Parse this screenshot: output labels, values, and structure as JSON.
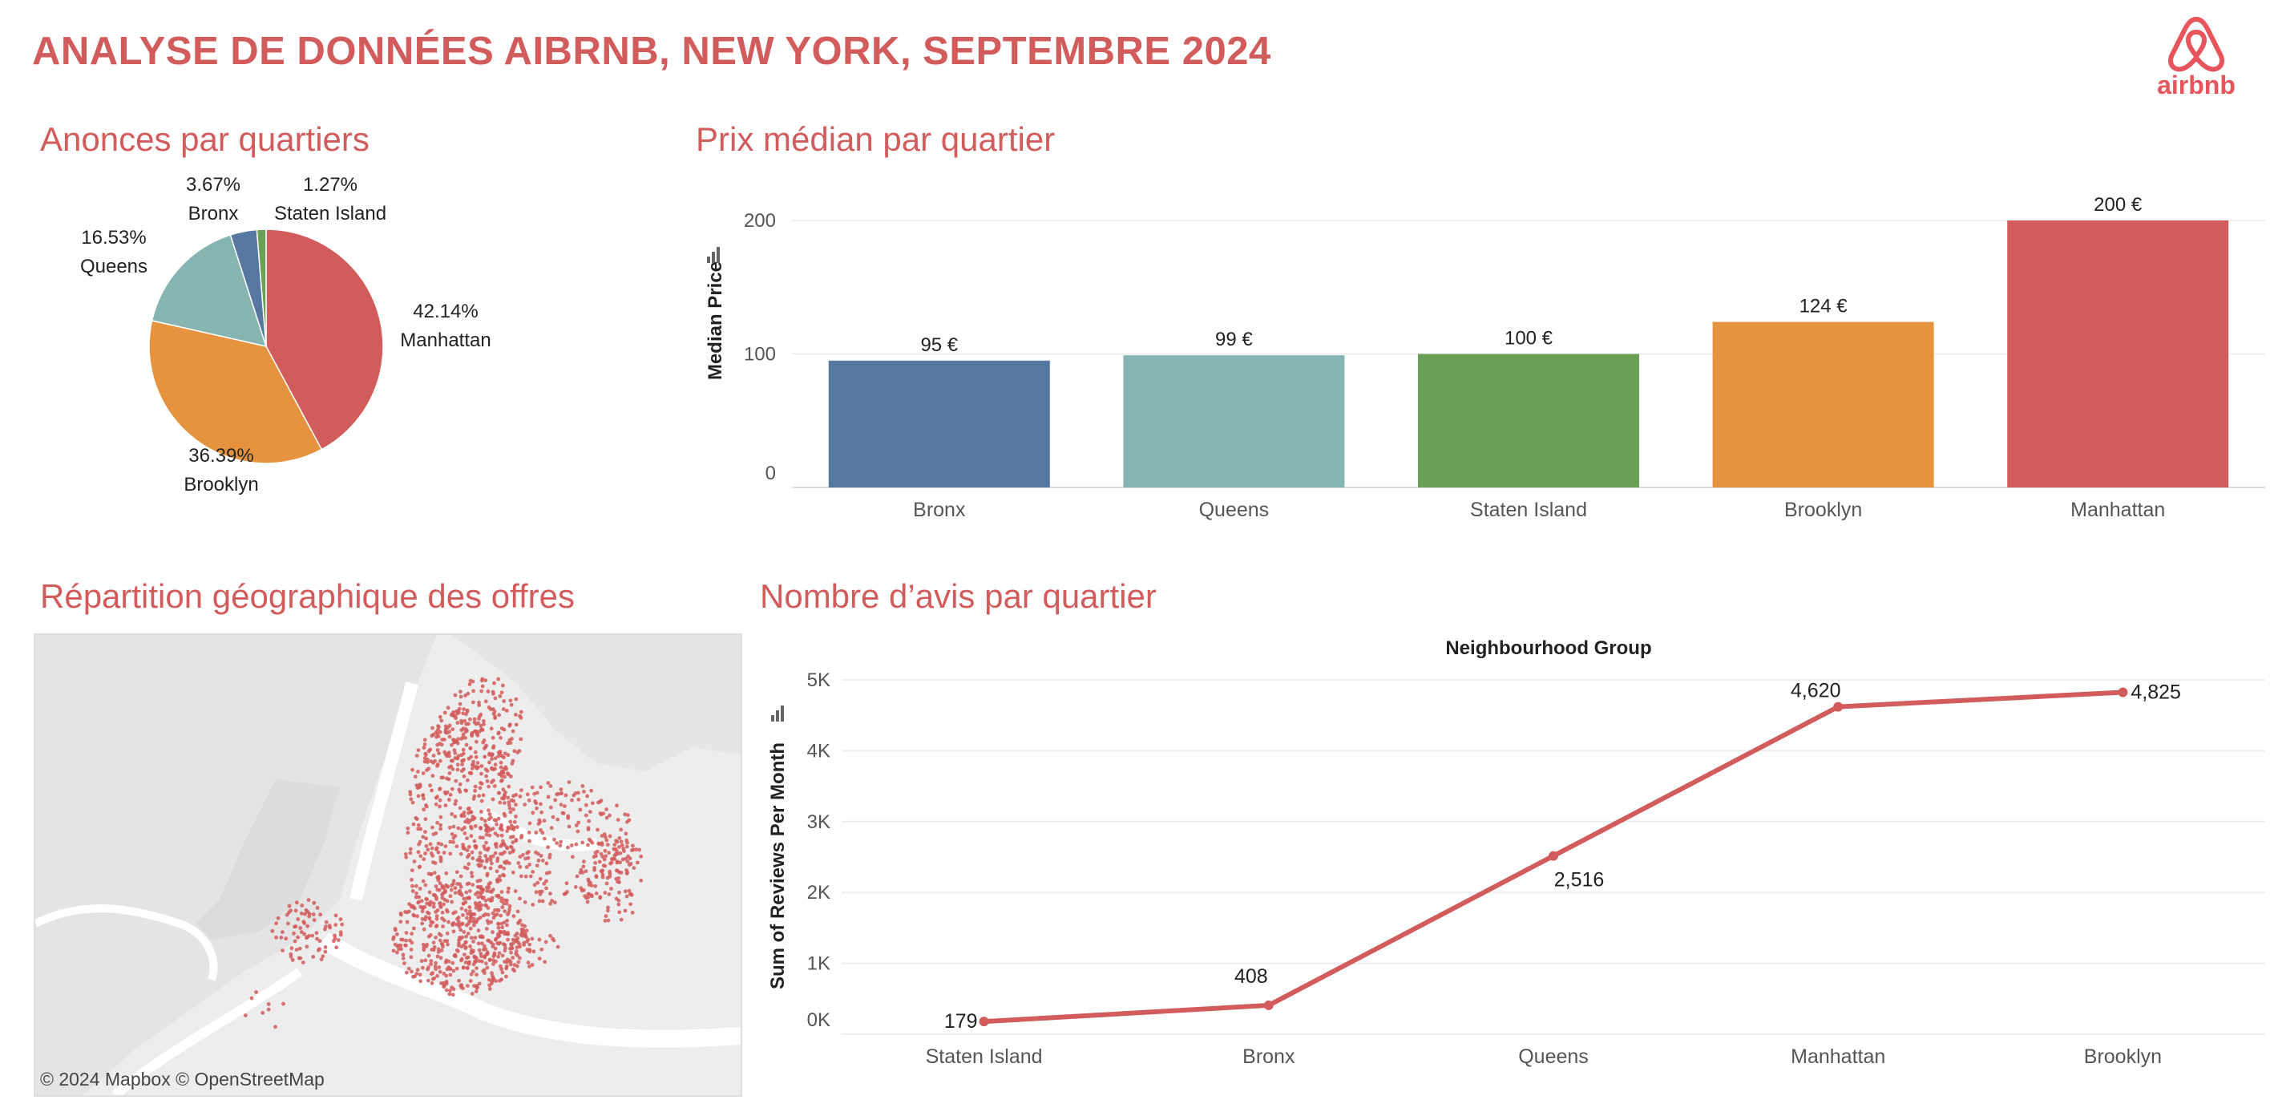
{
  "header": {
    "title": "ANALYSE DE DONNÉES AIBRNB, NEW YORK, SEPTEMBRE 2024",
    "logo_text": "airbnb",
    "logo_icon": "airbnb-logo-icon"
  },
  "sections": {
    "pie": "Anonces par quartiers",
    "bar": "Prix médian par quartier",
    "map": "Répartition géographique des offres",
    "line": "Nombre d’avis par quartier"
  },
  "map": {
    "credit": "© 2024 Mapbox  © OpenStreetMap",
    "point_color": "#d25b5b"
  },
  "chart_data": [
    {
      "type": "pie",
      "slices": [
        {
          "label": "Manhattan",
          "value": 42.14,
          "display": "42.14%",
          "color": "#d25b5b"
        },
        {
          "label": "Brooklyn",
          "value": 36.39,
          "display": "36.39%",
          "color": "#e69340"
        },
        {
          "label": "Queens",
          "value": 16.53,
          "display": "16.53%",
          "color": "#86b5b1"
        },
        {
          "label": "Bronx",
          "value": 3.67,
          "display": "3.67%",
          "color": "#5577a0"
        },
        {
          "label": "Staten Island",
          "value": 1.27,
          "display": "1.27%",
          "color": "#69a056"
        }
      ]
    },
    {
      "type": "bar",
      "ylabel": "Median Price",
      "ylim": [
        0,
        220
      ],
      "yticks": [
        0,
        100,
        200
      ],
      "categories": [
        "Bronx",
        "Queens",
        "Staten Island",
        "Brooklyn",
        "Manhattan"
      ],
      "values": [
        95,
        99,
        100,
        124,
        200
      ],
      "labels": [
        "95 €",
        "99 €",
        "100 €",
        "124 €",
        "200 €"
      ],
      "colors": [
        "#5577a0",
        "#86b5b1",
        "#69a056",
        "#e69340",
        "#d25b5b"
      ]
    },
    {
      "type": "line",
      "title": "Neighbourhood Group",
      "ylabel": "Sum of Reviews Per Month",
      "ylim": [
        0,
        5000
      ],
      "yticks": [
        0,
        1000,
        2000,
        3000,
        4000,
        5000
      ],
      "ytick_labels": [
        "0K",
        "1K",
        "2K",
        "3K",
        "4K",
        "5K"
      ],
      "categories": [
        "Staten Island",
        "Bronx",
        "Queens",
        "Manhattan",
        "Brooklyn"
      ],
      "values": [
        179,
        408,
        2516,
        4620,
        4825
      ],
      "labels": [
        "179",
        "408",
        "2,516",
        "4,620",
        "4,825"
      ],
      "color": "#d25b5b"
    }
  ]
}
